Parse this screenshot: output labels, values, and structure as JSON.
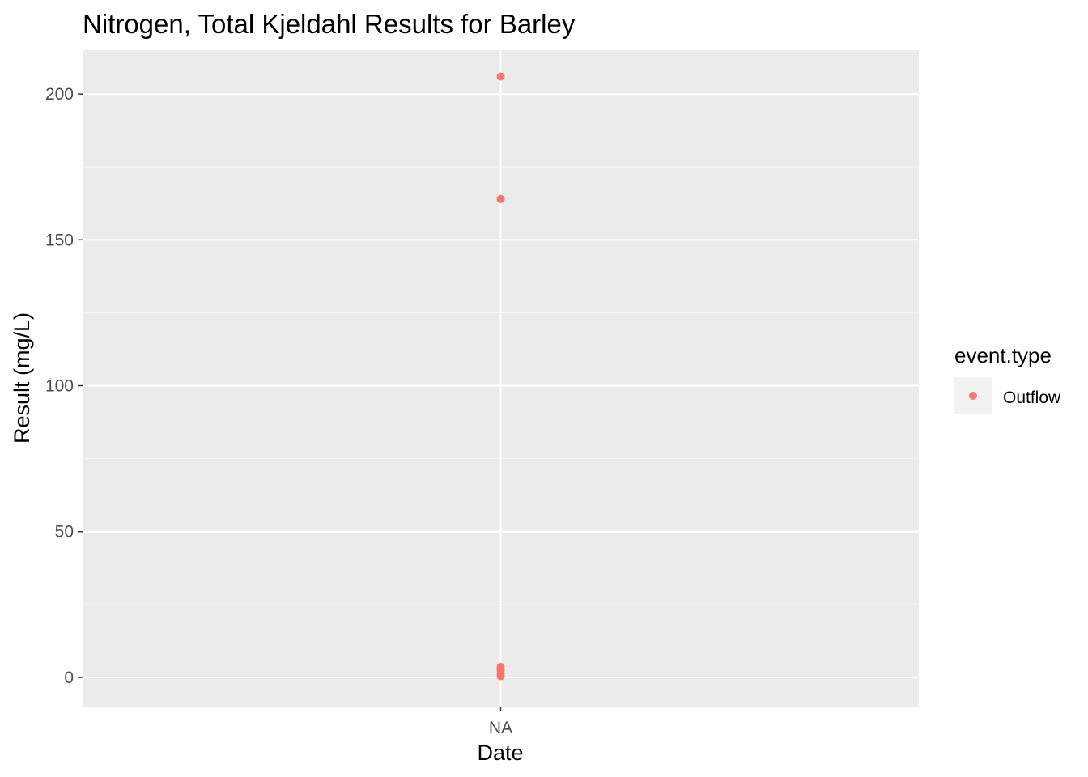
{
  "chart_data": {
    "type": "scatter",
    "title": "Nitrogen, Total Kjeldahl Results for Barley",
    "xlabel": "Date",
    "ylabel": "Result (mg/L)",
    "x_categories": [
      "NA"
    ],
    "ylim": [
      -10,
      215
    ],
    "y_ticks": [
      0,
      50,
      100,
      150,
      200
    ],
    "y_tick_labels": [
      "0",
      "50",
      "100",
      "150",
      "200"
    ],
    "grid": true,
    "legend": {
      "title": "event.type",
      "placement": "right",
      "entries": [
        "Outflow"
      ]
    },
    "series": [
      {
        "name": "Outflow",
        "color": "#F8766D",
        "points": [
          {
            "x": "NA",
            "y": 206
          },
          {
            "x": "NA",
            "y": 164
          },
          {
            "x": "NA",
            "y": 3.6
          },
          {
            "x": "NA",
            "y": 2.5
          },
          {
            "x": "NA",
            "y": 1.2
          },
          {
            "x": "NA",
            "y": 0.4
          }
        ]
      }
    ],
    "colors": {
      "panel_background": "#EBEBEB",
      "grid_major": "#FFFFFF",
      "grid_minor": "#F5F5F5",
      "legend_key_background": "#F2F2F2"
    }
  }
}
